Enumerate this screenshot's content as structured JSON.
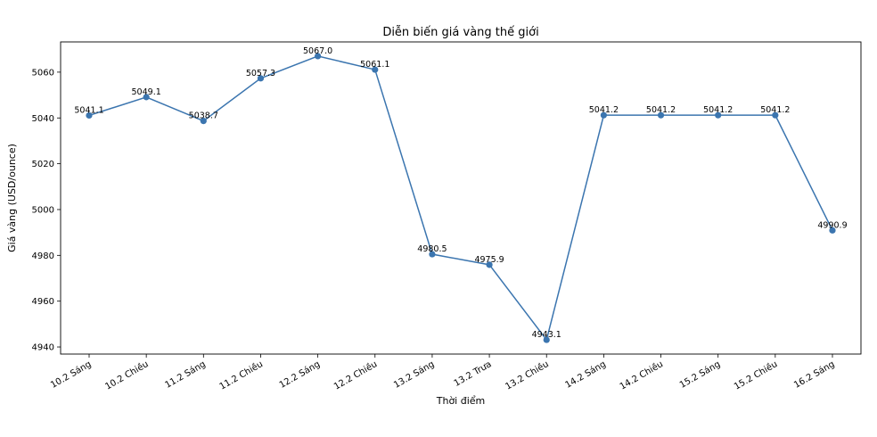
{
  "chart_data": {
    "type": "line",
    "title": "Diễn biến giá vàng thế giới",
    "xlabel": "Thời điểm",
    "ylabel": "Giá vàng (USD/ounce)",
    "categories": [
      "10.2 Sáng",
      "10.2 Chiều",
      "11.2 Sáng",
      "11.2 Chiều",
      "12.2 Sáng",
      "12.2 Chiều",
      "13.2 Sáng",
      "13.2 Trưa",
      "13.2 Chiều",
      "14.2 Sáng",
      "14.2 Chiều",
      "15.2 Sáng",
      "15.2 Chiều",
      "16.2 Sáng"
    ],
    "values": [
      5041.1,
      5049.1,
      5038.7,
      5057.3,
      5067.0,
      5061.1,
      4980.5,
      4975.9,
      4943.1,
      5041.2,
      5041.2,
      5041.2,
      5041.2,
      4990.9
    ],
    "data_labels": [
      "5041.1",
      "5049.1",
      "5038.7",
      "5057.3",
      "5067.0",
      "5061.1",
      "4980.5",
      "4975.9",
      "4943.1",
      "5041.2",
      "5041.2",
      "5041.2",
      "5041.2",
      "4990.9"
    ],
    "yticks": [
      "4940",
      "4960",
      "4980",
      "5000",
      "5020",
      "5040",
      "5060"
    ],
    "ytick_values": [
      4940,
      4960,
      4980,
      5000,
      5020,
      5040,
      5060
    ],
    "ylim": [
      4936.9,
      5073.2
    ],
    "grid": false,
    "line_color": "#3b75af"
  }
}
